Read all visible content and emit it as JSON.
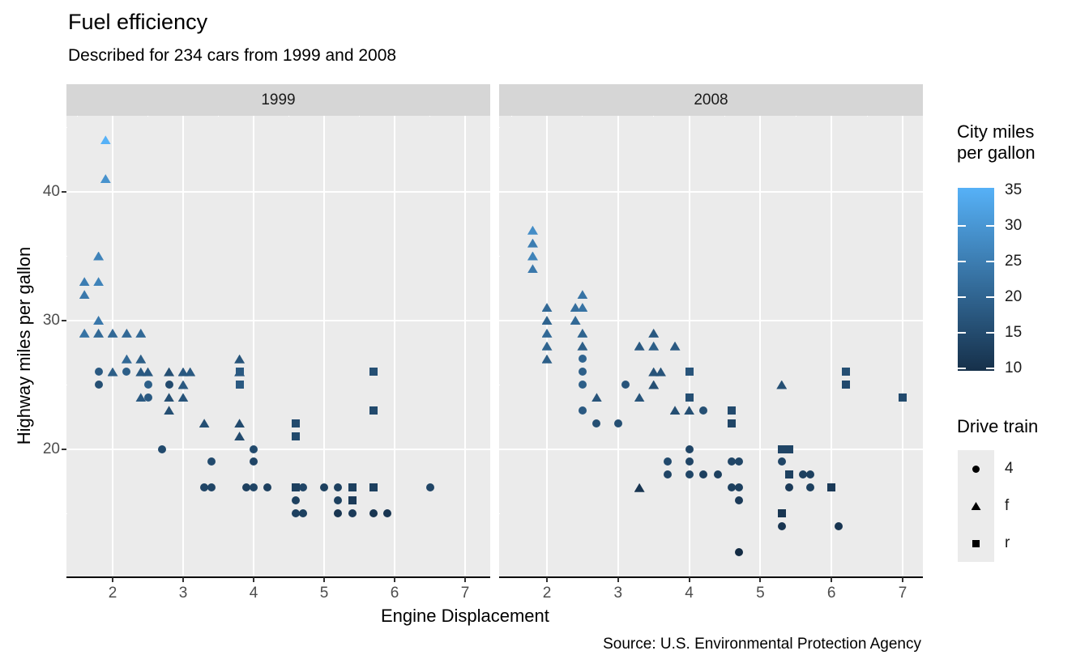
{
  "page": {
    "title": "Fuel efficiency",
    "subtitle": "Described for 234 cars from 1999 and 2008",
    "caption": "Source: U.S. Environmental Protection Agency",
    "x_axis_title": "Engine Displacement",
    "y_axis_title": "Highway miles per gallon"
  },
  "colors": {
    "panel_bg": "#ebebeb",
    "strip_bg": "#d6d6d6",
    "gridline": "#ffffff",
    "axis_text": "#4d4d4d",
    "gradient_low": "#132B43",
    "gradient_high": "#56B1F7",
    "legend_glyph": "#000000"
  },
  "legend_color": {
    "title_line1": "City miles",
    "title_line2": "per gallon",
    "ticks": [
      35,
      30,
      25,
      20,
      15,
      10
    ],
    "domain": [
      9,
      35
    ]
  },
  "legend_shape": {
    "title": "Drive train",
    "items": [
      {
        "shape": "circle",
        "label": "4"
      },
      {
        "shape": "triangle",
        "label": "f"
      },
      {
        "shape": "square",
        "label": "r"
      }
    ]
  },
  "chart_data": {
    "type": "scatter",
    "title": "Fuel efficiency",
    "subtitle": "Described for 234 cars from 1999 and 2008",
    "xlabel": "Engine Displacement",
    "ylabel": "Highway miles per gallon",
    "color_variable": "City miles per gallon (cty)",
    "shape_variable": "Drive train (drv)",
    "x_ticks": [
      2,
      3,
      4,
      5,
      6,
      7
    ],
    "x_minor": [
      1.5,
      2.5,
      3.5,
      4.5,
      5.5,
      6.5
    ],
    "y_ticks": [
      20,
      30,
      40
    ],
    "y_minor": [
      15,
      25,
      35,
      45
    ],
    "x_range": [
      1.3,
      7.3
    ],
    "y_range": [
      10.3,
      46
    ],
    "grid": true,
    "legend_position": "right",
    "point_format": [
      "displ",
      "hwy",
      "drv",
      "cty"
    ],
    "facets": [
      {
        "label": "1999",
        "points": [
          [
            1.9,
            44,
            "f",
            35
          ],
          [
            1.9,
            41,
            "f",
            29
          ],
          [
            1.8,
            35,
            "f",
            26
          ],
          [
            1.6,
            33,
            "f",
            25
          ],
          [
            1.8,
            33,
            "f",
            26
          ],
          [
            1.6,
            32,
            "f",
            24
          ],
          [
            1.8,
            30,
            "f",
            24
          ],
          [
            1.6,
            29,
            "f",
            23
          ],
          [
            1.8,
            29,
            "f",
            21
          ],
          [
            2.0,
            29,
            "f",
            21
          ],
          [
            2.2,
            29,
            "f",
            21
          ],
          [
            2.4,
            29,
            "f",
            21
          ],
          [
            2.2,
            27,
            "f",
            21
          ],
          [
            2.4,
            27,
            "f",
            19
          ],
          [
            3.8,
            27,
            "f",
            17
          ],
          [
            2.0,
            26,
            "f",
            19
          ],
          [
            2.4,
            26,
            "f",
            18
          ],
          [
            2.5,
            26,
            "f",
            18
          ],
          [
            2.8,
            26,
            "f",
            16
          ],
          [
            3.0,
            26,
            "f",
            18
          ],
          [
            3.1,
            26,
            "f",
            18
          ],
          [
            3.8,
            26,
            "f",
            17
          ],
          [
            3.0,
            25,
            "f",
            18
          ],
          [
            2.4,
            24,
            "f",
            18
          ],
          [
            2.8,
            24,
            "f",
            16
          ],
          [
            3.0,
            24,
            "f",
            17
          ],
          [
            2.8,
            23,
            "f",
            16
          ],
          [
            3.3,
            22,
            "f",
            16
          ],
          [
            3.8,
            22,
            "f",
            15
          ],
          [
            3.8,
            21,
            "f",
            15
          ],
          [
            1.8,
            26,
            "4",
            18
          ],
          [
            2.2,
            26,
            "4",
            19
          ],
          [
            1.8,
            25,
            "4",
            16
          ],
          [
            2.5,
            25,
            "4",
            19
          ],
          [
            2.8,
            25,
            "4",
            15
          ],
          [
            2.5,
            24,
            "4",
            18
          ],
          [
            2.7,
            20,
            "4",
            15
          ],
          [
            4.0,
            20,
            "4",
            15
          ],
          [
            3.4,
            19,
            "4",
            15
          ],
          [
            4.0,
            19,
            "4",
            14
          ],
          [
            3.3,
            17,
            "4",
            14
          ],
          [
            3.4,
            17,
            "4",
            14
          ],
          [
            3.9,
            17,
            "4",
            13
          ],
          [
            4.0,
            17,
            "4",
            14
          ],
          [
            4.2,
            17,
            "4",
            13
          ],
          [
            4.7,
            17,
            "4",
            14
          ],
          [
            5.0,
            17,
            "4",
            13
          ],
          [
            5.2,
            17,
            "4",
            13
          ],
          [
            6.5,
            17,
            "4",
            14
          ],
          [
            4.6,
            16,
            "4",
            13
          ],
          [
            5.2,
            16,
            "4",
            13
          ],
          [
            4.6,
            15,
            "4",
            13
          ],
          [
            4.7,
            15,
            "4",
            13
          ],
          [
            5.2,
            15,
            "4",
            11
          ],
          [
            5.4,
            15,
            "4",
            12
          ],
          [
            5.7,
            15,
            "4",
            11
          ],
          [
            5.9,
            15,
            "4",
            11
          ],
          [
            3.8,
            26,
            "r",
            18
          ],
          [
            5.7,
            26,
            "r",
            16
          ],
          [
            3.8,
            25,
            "r",
            18
          ],
          [
            5.7,
            23,
            "r",
            15
          ],
          [
            4.6,
            22,
            "r",
            15
          ],
          [
            4.6,
            21,
            "r",
            15
          ],
          [
            4.6,
            17,
            "r",
            13
          ],
          [
            5.4,
            17,
            "r",
            13
          ],
          [
            5.7,
            17,
            "r",
            13
          ],
          [
            5.4,
            16,
            "r",
            12
          ]
        ]
      },
      {
        "label": "2008",
        "points": [
          [
            1.8,
            37,
            "f",
            28
          ],
          [
            1.8,
            36,
            "f",
            25
          ],
          [
            1.8,
            35,
            "f",
            26
          ],
          [
            1.8,
            34,
            "f",
            24
          ],
          [
            2.0,
            31,
            "f",
            21
          ],
          [
            2.0,
            30,
            "f",
            20
          ],
          [
            2.0,
            29,
            "f",
            21
          ],
          [
            2.0,
            28,
            "f",
            20
          ],
          [
            2.0,
            27,
            "f",
            19
          ],
          [
            2.5,
            32,
            "f",
            23
          ],
          [
            2.4,
            31,
            "f",
            22
          ],
          [
            2.5,
            31,
            "f",
            23
          ],
          [
            2.4,
            30,
            "f",
            21
          ],
          [
            2.5,
            29,
            "f",
            20
          ],
          [
            2.5,
            28,
            "f",
            19
          ],
          [
            2.7,
            24,
            "f",
            17
          ],
          [
            3.3,
            28,
            "f",
            18
          ],
          [
            3.5,
            29,
            "f",
            18
          ],
          [
            3.5,
            28,
            "f",
            19
          ],
          [
            3.8,
            28,
            "f",
            18
          ],
          [
            3.5,
            26,
            "f",
            17
          ],
          [
            3.6,
            26,
            "f",
            17
          ],
          [
            3.5,
            25,
            "f",
            16
          ],
          [
            3.3,
            24,
            "f",
            17
          ],
          [
            3.8,
            23,
            "f",
            16
          ],
          [
            4.0,
            23,
            "f",
            16
          ],
          [
            3.3,
            17,
            "f",
            11
          ],
          [
            5.3,
            25,
            "f",
            16
          ],
          [
            2.5,
            27,
            "4",
            20
          ],
          [
            2.5,
            26,
            "4",
            19
          ],
          [
            2.5,
            25,
            "4",
            19
          ],
          [
            2.5,
            23,
            "4",
            18
          ],
          [
            2.7,
            22,
            "4",
            16
          ],
          [
            3.0,
            22,
            "4",
            16
          ],
          [
            3.1,
            25,
            "4",
            17
          ],
          [
            4.2,
            23,
            "4",
            16
          ],
          [
            3.7,
            19,
            "4",
            15
          ],
          [
            4.0,
            20,
            "4",
            14
          ],
          [
            4.0,
            19,
            "4",
            14
          ],
          [
            3.7,
            18,
            "4",
            14
          ],
          [
            4.0,
            18,
            "4",
            14
          ],
          [
            4.2,
            18,
            "4",
            13
          ],
          [
            4.4,
            18,
            "4",
            13
          ],
          [
            4.6,
            19,
            "4",
            14
          ],
          [
            4.7,
            19,
            "4",
            14
          ],
          [
            4.6,
            17,
            "4",
            13
          ],
          [
            4.7,
            17,
            "4",
            13
          ],
          [
            4.7,
            16,
            "4",
            12
          ],
          [
            4.7,
            12,
            "4",
            9
          ],
          [
            5.3,
            19,
            "4",
            14
          ],
          [
            5.3,
            14,
            "4",
            11
          ],
          [
            5.4,
            17,
            "4",
            12
          ],
          [
            5.6,
            18,
            "4",
            13
          ],
          [
            5.7,
            18,
            "4",
            13
          ],
          [
            5.7,
            17,
            "4",
            13
          ],
          [
            6.1,
            14,
            "4",
            11
          ],
          [
            4.0,
            26,
            "r",
            17
          ],
          [
            4.0,
            24,
            "r",
            16
          ],
          [
            4.6,
            23,
            "r",
            15
          ],
          [
            4.6,
            22,
            "r",
            14
          ],
          [
            5.3,
            20,
            "r",
            14
          ],
          [
            5.4,
            20,
            "r",
            14
          ],
          [
            5.4,
            18,
            "r",
            13
          ],
          [
            5.3,
            15,
            "r",
            11
          ],
          [
            6.0,
            17,
            "r",
            12
          ],
          [
            6.2,
            26,
            "r",
            16
          ],
          [
            6.2,
            25,
            "r",
            15
          ],
          [
            7.0,
            24,
            "r",
            15
          ]
        ]
      }
    ]
  }
}
